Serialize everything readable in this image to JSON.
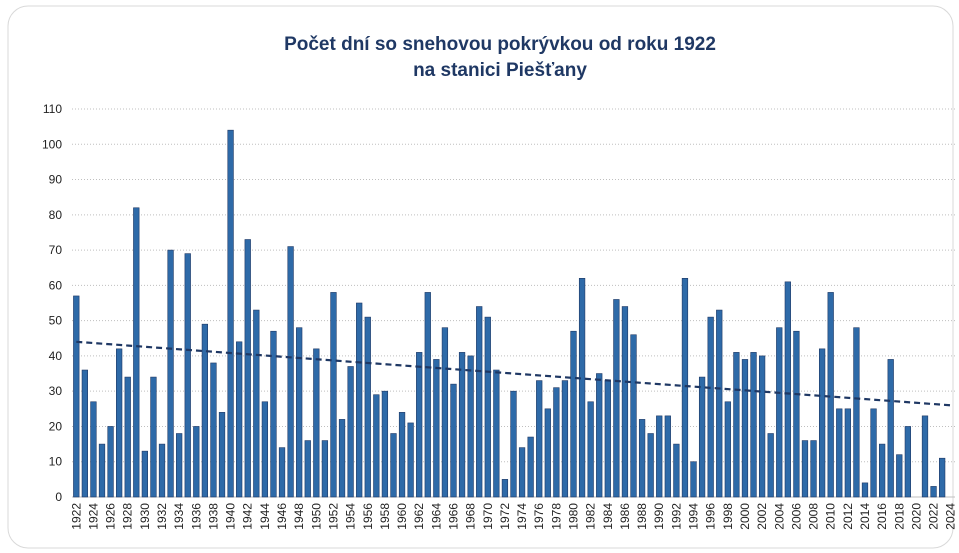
{
  "chart_data": {
    "type": "bar",
    "title": "Počet dní so snehovou pokrývkou od roku 1922",
    "subtitle": "na stanici Piešťany",
    "categories": [
      "1922",
      null,
      "1924",
      null,
      "1926",
      null,
      "1928",
      null,
      "1930",
      null,
      "1932",
      null,
      "1934",
      null,
      "1936",
      null,
      "1938",
      null,
      "1940",
      null,
      "1942",
      null,
      "1944",
      null,
      "1946",
      null,
      "1948",
      null,
      "1950",
      null,
      "1952",
      null,
      "1954",
      null,
      "1956",
      null,
      "1958",
      null,
      "1960",
      null,
      "1962",
      null,
      "1964",
      null,
      "1966",
      null,
      "1968",
      null,
      "1970",
      null,
      "1972",
      null,
      "1974",
      null,
      "1976",
      null,
      "1978",
      null,
      "1980",
      null,
      "1982",
      null,
      "1984",
      null,
      "1986",
      null,
      "1988",
      null,
      "1990",
      null,
      "1992",
      null,
      "1994",
      null,
      "1996",
      null,
      "1998",
      null,
      "2000",
      null,
      "2002",
      null,
      "2004",
      null,
      "2006",
      null,
      "2008",
      null,
      "2010",
      null,
      "2012",
      null,
      "2014",
      null,
      "2016",
      null,
      "2018",
      null,
      "2020",
      null,
      "2022",
      null,
      "2024"
    ],
    "values": [
      57,
      36,
      27,
      15,
      20,
      42,
      34,
      82,
      13,
      34,
      15,
      70,
      18,
      69,
      20,
      49,
      38,
      24,
      104,
      44,
      73,
      53,
      27,
      47,
      14,
      71,
      48,
      16,
      42,
      16,
      58,
      22,
      37,
      55,
      51,
      29,
      30,
      18,
      24,
      21,
      41,
      58,
      39,
      48,
      32,
      41,
      40,
      54,
      51,
      36,
      5,
      30,
      14,
      17,
      33,
      25,
      31,
      33,
      47,
      62,
      27,
      35,
      33,
      56,
      54,
      46,
      22,
      18,
      23,
      23,
      15,
      62,
      10,
      34,
      51,
      53,
      27,
      41,
      39,
      41,
      40,
      18,
      48,
      61,
      47,
      16,
      16,
      42,
      58,
      25,
      25,
      48,
      4,
      25,
      15,
      39,
      12,
      20,
      0,
      23,
      3,
      11,
      null
    ],
    "color": "#2e6aa8",
    "trendline": {
      "values": [
        44,
        26
      ],
      "color": "#1f3864"
    },
    "ylim": [
      0,
      110
    ],
    "yticks": [
      0,
      10,
      20,
      30,
      40,
      50,
      60,
      70,
      80,
      90,
      100,
      110
    ],
    "grid": true
  }
}
